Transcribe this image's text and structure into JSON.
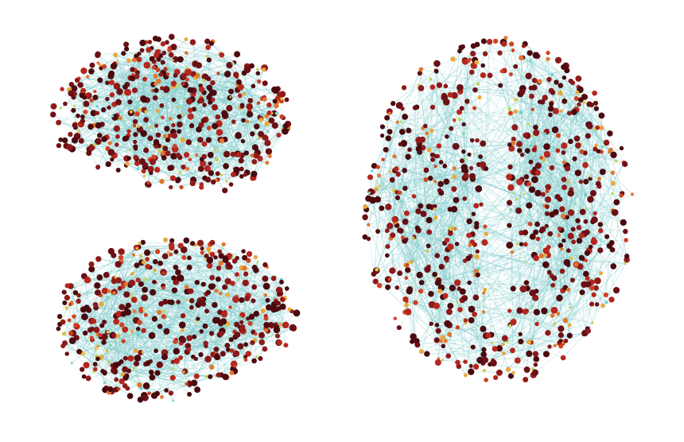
{
  "figure": {
    "background": "#ffffff",
    "edge_color": "#7ec9c9",
    "node_palette": [
      "#4a0a0e",
      "#6b1015",
      "#8f1a1a",
      "#b5261e",
      "#d0411f",
      "#e0782e",
      "#e9a83c",
      "#d8c84a",
      "#bcd86a",
      "#8ed3b8",
      "#6fd0d6"
    ],
    "panels": [
      {
        "view": "sagittal-left"
      },
      {
        "view": "sagittal-right"
      },
      {
        "view": "axial"
      }
    ]
  }
}
